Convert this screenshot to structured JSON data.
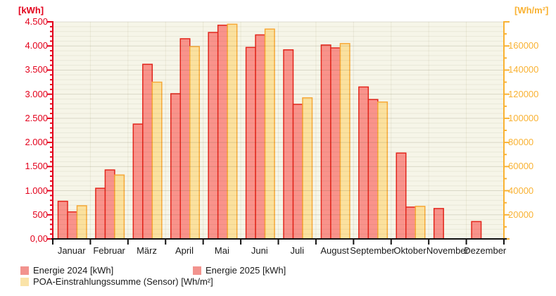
{
  "chart_data": {
    "type": "bar",
    "categories": [
      "Januar",
      "Februar",
      "März",
      "April",
      "Mai",
      "Juni",
      "Juli",
      "August",
      "September",
      "Oktober",
      "November",
      "Dezember"
    ],
    "series": [
      {
        "key": "energie-2024",
        "name": "Energie 2024 [kWh]",
        "axis": "left",
        "fill": "#F9938B",
        "stroke": "#E3261C",
        "legend_fill": "#F2938E",
        "values": [
          780,
          1050,
          2380,
          3010,
          4280,
          3970,
          3920,
          4020,
          3150,
          1780,
          630,
          360
        ]
      },
      {
        "key": "energie-2025",
        "name": "Energie 2025 [kWh]",
        "axis": "left",
        "fill": "#F9938B",
        "stroke": "#E3261C",
        "legend_fill": "#F2938E",
        "values": [
          560,
          1430,
          3620,
          4150,
          4430,
          4230,
          2790,
          3960,
          2890,
          660,
          null,
          null
        ]
      },
      {
        "key": "poa-einstrahlungssumme",
        "name": "POA-Einstrahlungssumme (Sensor) [Wh/m²]",
        "axis": "right",
        "fill": "#FBE19E",
        "stroke": "#F7A938",
        "legend_fill": "#FAE3A8",
        "values": [
          27500,
          53000,
          130000,
          159500,
          178000,
          174000,
          117000,
          162000,
          113500,
          27000,
          null,
          null
        ]
      }
    ],
    "left_axis": {
      "title": "[kWh]",
      "color": "#E3001B",
      "min": 0,
      "max": 4500,
      "major_step": 500,
      "minor_step": 100,
      "tick_labels": [
        "0,00",
        "500",
        "1.000",
        "1.500",
        "2.000",
        "2.500",
        "3.000",
        "3.500",
        "4.000",
        "4.500"
      ]
    },
    "right_axis": {
      "title": "[Wh/m²]",
      "color": "#F9B233",
      "min": 0,
      "max": 180000,
      "major_step": 20000,
      "minor_step": 10000,
      "tick_labels": [
        "20000",
        "40000",
        "60000",
        "80000",
        "100000",
        "120000",
        "140000",
        "160000"
      ]
    },
    "x_axis_color": "#111111",
    "plot_bg": "#F6F5E8",
    "grid": true,
    "legend_position": "bottom",
    "text_color": "#1A1A1A"
  }
}
